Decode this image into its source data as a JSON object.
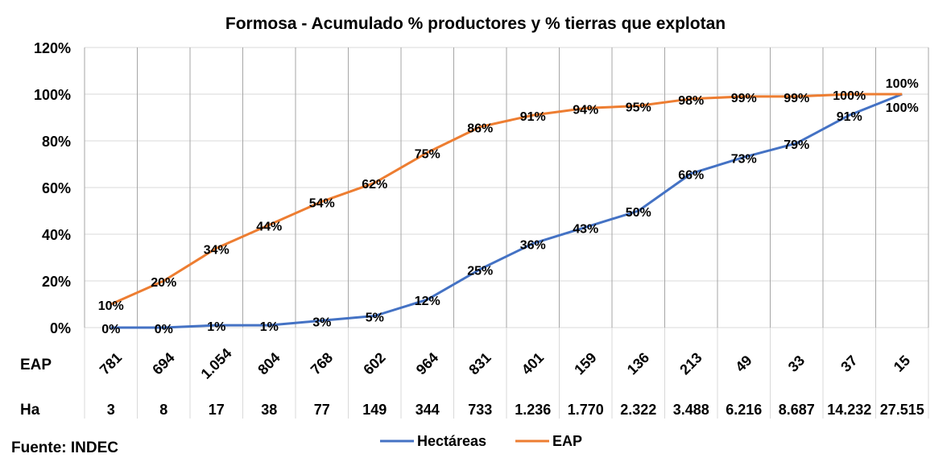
{
  "chart_data": {
    "type": "line",
    "title": "Formosa - Acumulado % productores y % tierras que explotan",
    "source": "Fuente: INDEC",
    "ylim": [
      0,
      120
    ],
    "y_ticks": [
      "0%",
      "20%",
      "40%",
      "60%",
      "80%",
      "100%",
      "120%"
    ],
    "y_tick_values": [
      0,
      20,
      40,
      60,
      80,
      100,
      120
    ],
    "grid": true,
    "legend_position": "bottom",
    "table_rows": [
      {
        "label": "EAP",
        "values": [
          "781",
          "694",
          "1.054",
          "804",
          "768",
          "602",
          "964",
          "831",
          "401",
          "159",
          "136",
          "213",
          "49",
          "33",
          "37",
          "15"
        ]
      },
      {
        "label": "Ha",
        "values": [
          "3",
          "8",
          "17",
          "38",
          "77",
          "149",
          "344",
          "733",
          "1.236",
          "1.770",
          "2.322",
          "3.488",
          "6.216",
          "8.687",
          "14.232",
          "27.515"
        ]
      }
    ],
    "series": [
      {
        "name": "Hectáreas",
        "color": "#4472C4",
        "values": [
          0,
          0,
          1,
          1,
          3,
          5,
          12,
          25,
          36,
          43,
          50,
          66,
          73,
          79,
          91,
          100
        ]
      },
      {
        "name": "EAP",
        "color": "#ED7D31",
        "values": [
          10,
          20,
          34,
          44,
          54,
          62,
          75,
          86,
          91,
          94,
          95,
          98,
          99,
          99,
          100,
          100
        ]
      }
    ]
  }
}
